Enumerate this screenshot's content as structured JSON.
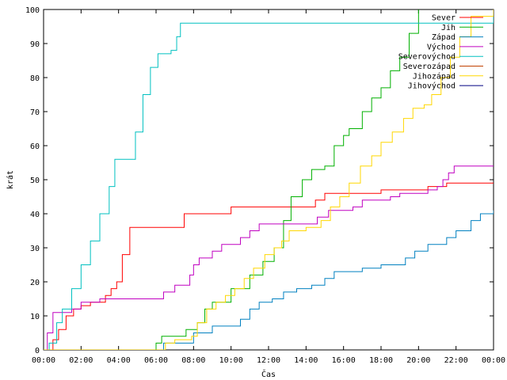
{
  "chart_data": {
    "type": "line",
    "xlabel": "Čas",
    "ylabel": "krát",
    "xlim": [
      0,
      24
    ],
    "ylim": [
      0,
      100
    ],
    "x_tick_labels": [
      "00:00",
      "02:00",
      "04:00",
      "06:00",
      "08:00",
      "10:00",
      "12:00",
      "14:00",
      "16:00",
      "18:00",
      "20:00",
      "22:00",
      "00:00"
    ],
    "y_tick_labels": [
      "0",
      "10",
      "20",
      "30",
      "40",
      "50",
      "60",
      "70",
      "80",
      "90",
      "100"
    ],
    "legend_position": "top-right",
    "grid": false,
    "series": [
      {
        "name": "Sever",
        "color": "#ff0000",
        "points": [
          [
            0,
            0
          ],
          [
            0.5,
            3
          ],
          [
            0.8,
            6
          ],
          [
            1.2,
            10
          ],
          [
            1.6,
            12
          ],
          [
            2.0,
            13
          ],
          [
            2.5,
            14
          ],
          [
            3.3,
            16
          ],
          [
            3.6,
            18
          ],
          [
            3.9,
            20
          ],
          [
            4.2,
            28
          ],
          [
            4.6,
            36
          ],
          [
            7.3,
            36
          ],
          [
            7.5,
            40
          ],
          [
            9.8,
            40
          ],
          [
            10.0,
            42
          ],
          [
            14.2,
            42
          ],
          [
            14.5,
            44
          ],
          [
            15.0,
            46
          ],
          [
            18.0,
            47
          ],
          [
            20.5,
            48
          ],
          [
            21.5,
            49
          ],
          [
            24,
            49
          ]
        ]
      },
      {
        "name": "Jih",
        "color": "#00b000",
        "points": [
          [
            0,
            0
          ],
          [
            5.8,
            0
          ],
          [
            6.0,
            2
          ],
          [
            6.3,
            4
          ],
          [
            7.4,
            4
          ],
          [
            7.6,
            6
          ],
          [
            8.2,
            8
          ],
          [
            8.6,
            12
          ],
          [
            9.0,
            14
          ],
          [
            10.0,
            18
          ],
          [
            11.0,
            22
          ],
          [
            11.7,
            26
          ],
          [
            12.3,
            30
          ],
          [
            12.8,
            38
          ],
          [
            13.2,
            45
          ],
          [
            13.8,
            50
          ],
          [
            14.3,
            53
          ],
          [
            15.0,
            54
          ],
          [
            15.5,
            60
          ],
          [
            16.0,
            63
          ],
          [
            16.3,
            65
          ],
          [
            17.0,
            70
          ],
          [
            17.5,
            74
          ],
          [
            18.0,
            77
          ],
          [
            18.5,
            82
          ],
          [
            19.0,
            86
          ],
          [
            19.5,
            93
          ],
          [
            20.0,
            100
          ]
        ]
      },
      {
        "name": "Západ",
        "color": "#0080c0",
        "points": [
          [
            0,
            0
          ],
          [
            6.0,
            0
          ],
          [
            6.4,
            2
          ],
          [
            7.5,
            2
          ],
          [
            8.0,
            5
          ],
          [
            9.0,
            7
          ],
          [
            10.5,
            9
          ],
          [
            11.0,
            12
          ],
          [
            11.5,
            14
          ],
          [
            12.2,
            15
          ],
          [
            12.8,
            17
          ],
          [
            13.5,
            18
          ],
          [
            14.3,
            19
          ],
          [
            15.0,
            21
          ],
          [
            15.5,
            23
          ],
          [
            17.0,
            24
          ],
          [
            18.0,
            25
          ],
          [
            19.3,
            27
          ],
          [
            19.8,
            29
          ],
          [
            20.5,
            31
          ],
          [
            21.5,
            33
          ],
          [
            22.0,
            35
          ],
          [
            22.8,
            38
          ],
          [
            23.3,
            40
          ],
          [
            24,
            41
          ]
        ]
      },
      {
        "name": "Východ",
        "color": "#c000c0",
        "points": [
          [
            0,
            0
          ],
          [
            0.2,
            5
          ],
          [
            0.5,
            11
          ],
          [
            1.1,
            11
          ],
          [
            1.5,
            12
          ],
          [
            2.0,
            14
          ],
          [
            3.0,
            15
          ],
          [
            6.0,
            15
          ],
          [
            6.4,
            17
          ],
          [
            7.0,
            19
          ],
          [
            7.8,
            22
          ],
          [
            8.0,
            25
          ],
          [
            8.3,
            27
          ],
          [
            9.0,
            29
          ],
          [
            9.5,
            31
          ],
          [
            10.5,
            33
          ],
          [
            11.0,
            35
          ],
          [
            11.5,
            37
          ],
          [
            14.0,
            37
          ],
          [
            14.6,
            39
          ],
          [
            15.2,
            41
          ],
          [
            16.5,
            42
          ],
          [
            17.0,
            44
          ],
          [
            18.5,
            45
          ],
          [
            19.0,
            46
          ],
          [
            20.5,
            47
          ],
          [
            21.0,
            48
          ],
          [
            21.3,
            50
          ],
          [
            21.6,
            52
          ],
          [
            21.9,
            54
          ],
          [
            24,
            54
          ]
        ]
      },
      {
        "name": "Severovýchod",
        "color": "#00c0c0",
        "points": [
          [
            0,
            0
          ],
          [
            0.3,
            2
          ],
          [
            0.7,
            8
          ],
          [
            1.0,
            12
          ],
          [
            1.5,
            18
          ],
          [
            2.0,
            25
          ],
          [
            2.5,
            32
          ],
          [
            3.0,
            40
          ],
          [
            3.5,
            48
          ],
          [
            3.8,
            56
          ],
          [
            4.5,
            56
          ],
          [
            4.9,
            64
          ],
          [
            5.3,
            75
          ],
          [
            5.7,
            83
          ],
          [
            6.1,
            87
          ],
          [
            6.8,
            88
          ],
          [
            7.1,
            92
          ],
          [
            7.3,
            96
          ],
          [
            15.0,
            96
          ],
          [
            24,
            98
          ]
        ]
      },
      {
        "name": "Severozápad",
        "color": "#c04000",
        "points": []
      },
      {
        "name": "Jihozápad",
        "color": "#ffd700",
        "points": [
          [
            0,
            0
          ],
          [
            6.1,
            0
          ],
          [
            6.5,
            2
          ],
          [
            7.0,
            3
          ],
          [
            7.9,
            4
          ],
          [
            8.2,
            8
          ],
          [
            8.7,
            12
          ],
          [
            9.2,
            14
          ],
          [
            9.7,
            16
          ],
          [
            10.2,
            18
          ],
          [
            10.7,
            21
          ],
          [
            11.2,
            24
          ],
          [
            11.8,
            28
          ],
          [
            12.3,
            30
          ],
          [
            12.7,
            32
          ],
          [
            13.1,
            35
          ],
          [
            14.0,
            36
          ],
          [
            14.8,
            38
          ],
          [
            15.3,
            42
          ],
          [
            15.8,
            45
          ],
          [
            16.3,
            49
          ],
          [
            16.9,
            54
          ],
          [
            17.5,
            57
          ],
          [
            18.0,
            61
          ],
          [
            18.6,
            64
          ],
          [
            19.2,
            68
          ],
          [
            19.7,
            71
          ],
          [
            20.3,
            72
          ],
          [
            20.7,
            75
          ],
          [
            21.2,
            80
          ],
          [
            21.7,
            86
          ],
          [
            22.2,
            92
          ],
          [
            22.8,
            98
          ],
          [
            24,
            100
          ]
        ]
      },
      {
        "name": "Jihovýchod",
        "color": "#000080",
        "points": []
      }
    ]
  }
}
